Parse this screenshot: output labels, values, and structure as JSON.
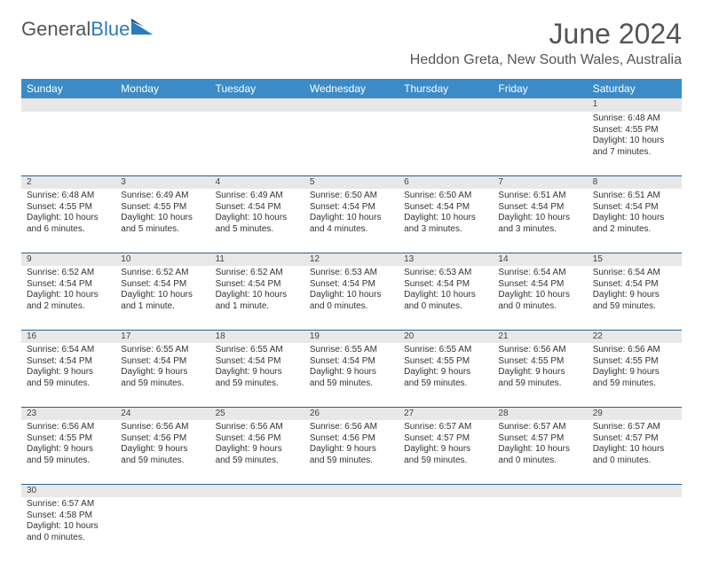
{
  "brand": {
    "part1": "General",
    "part2": "Blue",
    "logo_color": "#2b7bbd"
  },
  "title": "June 2024",
  "location": "Heddon Greta, New South Wales, Australia",
  "colors": {
    "header_bg": "#3b8bc8",
    "header_text": "#ffffff",
    "daynum_bg": "#e8e8e8",
    "border": "#2b5f8c",
    "text": "#333333",
    "title_text": "#555555"
  },
  "weekdays": [
    "Sunday",
    "Monday",
    "Tuesday",
    "Wednesday",
    "Thursday",
    "Friday",
    "Saturday"
  ],
  "weeks": [
    [
      null,
      null,
      null,
      null,
      null,
      null,
      {
        "n": "1",
        "sr": "Sunrise: 6:48 AM",
        "ss": "Sunset: 4:55 PM",
        "dl": "Daylight: 10 hours and 7 minutes."
      }
    ],
    [
      {
        "n": "2",
        "sr": "Sunrise: 6:48 AM",
        "ss": "Sunset: 4:55 PM",
        "dl": "Daylight: 10 hours and 6 minutes."
      },
      {
        "n": "3",
        "sr": "Sunrise: 6:49 AM",
        "ss": "Sunset: 4:55 PM",
        "dl": "Daylight: 10 hours and 5 minutes."
      },
      {
        "n": "4",
        "sr": "Sunrise: 6:49 AM",
        "ss": "Sunset: 4:54 PM",
        "dl": "Daylight: 10 hours and 5 minutes."
      },
      {
        "n": "5",
        "sr": "Sunrise: 6:50 AM",
        "ss": "Sunset: 4:54 PM",
        "dl": "Daylight: 10 hours and 4 minutes."
      },
      {
        "n": "6",
        "sr": "Sunrise: 6:50 AM",
        "ss": "Sunset: 4:54 PM",
        "dl": "Daylight: 10 hours and 3 minutes."
      },
      {
        "n": "7",
        "sr": "Sunrise: 6:51 AM",
        "ss": "Sunset: 4:54 PM",
        "dl": "Daylight: 10 hours and 3 minutes."
      },
      {
        "n": "8",
        "sr": "Sunrise: 6:51 AM",
        "ss": "Sunset: 4:54 PM",
        "dl": "Daylight: 10 hours and 2 minutes."
      }
    ],
    [
      {
        "n": "9",
        "sr": "Sunrise: 6:52 AM",
        "ss": "Sunset: 4:54 PM",
        "dl": "Daylight: 10 hours and 2 minutes."
      },
      {
        "n": "10",
        "sr": "Sunrise: 6:52 AM",
        "ss": "Sunset: 4:54 PM",
        "dl": "Daylight: 10 hours and 1 minute."
      },
      {
        "n": "11",
        "sr": "Sunrise: 6:52 AM",
        "ss": "Sunset: 4:54 PM",
        "dl": "Daylight: 10 hours and 1 minute."
      },
      {
        "n": "12",
        "sr": "Sunrise: 6:53 AM",
        "ss": "Sunset: 4:54 PM",
        "dl": "Daylight: 10 hours and 0 minutes."
      },
      {
        "n": "13",
        "sr": "Sunrise: 6:53 AM",
        "ss": "Sunset: 4:54 PM",
        "dl": "Daylight: 10 hours and 0 minutes."
      },
      {
        "n": "14",
        "sr": "Sunrise: 6:54 AM",
        "ss": "Sunset: 4:54 PM",
        "dl": "Daylight: 10 hours and 0 minutes."
      },
      {
        "n": "15",
        "sr": "Sunrise: 6:54 AM",
        "ss": "Sunset: 4:54 PM",
        "dl": "Daylight: 9 hours and 59 minutes."
      }
    ],
    [
      {
        "n": "16",
        "sr": "Sunrise: 6:54 AM",
        "ss": "Sunset: 4:54 PM",
        "dl": "Daylight: 9 hours and 59 minutes."
      },
      {
        "n": "17",
        "sr": "Sunrise: 6:55 AM",
        "ss": "Sunset: 4:54 PM",
        "dl": "Daylight: 9 hours and 59 minutes."
      },
      {
        "n": "18",
        "sr": "Sunrise: 6:55 AM",
        "ss": "Sunset: 4:54 PM",
        "dl": "Daylight: 9 hours and 59 minutes."
      },
      {
        "n": "19",
        "sr": "Sunrise: 6:55 AM",
        "ss": "Sunset: 4:54 PM",
        "dl": "Daylight: 9 hours and 59 minutes."
      },
      {
        "n": "20",
        "sr": "Sunrise: 6:55 AM",
        "ss": "Sunset: 4:55 PM",
        "dl": "Daylight: 9 hours and 59 minutes."
      },
      {
        "n": "21",
        "sr": "Sunrise: 6:56 AM",
        "ss": "Sunset: 4:55 PM",
        "dl": "Daylight: 9 hours and 59 minutes."
      },
      {
        "n": "22",
        "sr": "Sunrise: 6:56 AM",
        "ss": "Sunset: 4:55 PM",
        "dl": "Daylight: 9 hours and 59 minutes."
      }
    ],
    [
      {
        "n": "23",
        "sr": "Sunrise: 6:56 AM",
        "ss": "Sunset: 4:55 PM",
        "dl": "Daylight: 9 hours and 59 minutes."
      },
      {
        "n": "24",
        "sr": "Sunrise: 6:56 AM",
        "ss": "Sunset: 4:56 PM",
        "dl": "Daylight: 9 hours and 59 minutes."
      },
      {
        "n": "25",
        "sr": "Sunrise: 6:56 AM",
        "ss": "Sunset: 4:56 PM",
        "dl": "Daylight: 9 hours and 59 minutes."
      },
      {
        "n": "26",
        "sr": "Sunrise: 6:56 AM",
        "ss": "Sunset: 4:56 PM",
        "dl": "Daylight: 9 hours and 59 minutes."
      },
      {
        "n": "27",
        "sr": "Sunrise: 6:57 AM",
        "ss": "Sunset: 4:57 PM",
        "dl": "Daylight: 9 hours and 59 minutes."
      },
      {
        "n": "28",
        "sr": "Sunrise: 6:57 AM",
        "ss": "Sunset: 4:57 PM",
        "dl": "Daylight: 10 hours and 0 minutes."
      },
      {
        "n": "29",
        "sr": "Sunrise: 6:57 AM",
        "ss": "Sunset: 4:57 PM",
        "dl": "Daylight: 10 hours and 0 minutes."
      }
    ],
    [
      {
        "n": "30",
        "sr": "Sunrise: 6:57 AM",
        "ss": "Sunset: 4:58 PM",
        "dl": "Daylight: 10 hours and 0 minutes."
      },
      null,
      null,
      null,
      null,
      null,
      null
    ]
  ]
}
